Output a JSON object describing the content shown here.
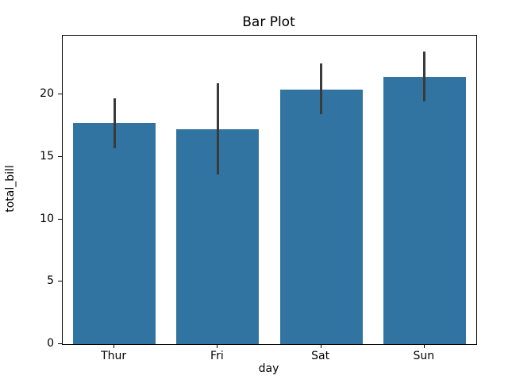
{
  "chart_data": {
    "type": "bar",
    "title": "Bar Plot",
    "xlabel": "day",
    "ylabel": "total_bill",
    "categories": [
      "Thur",
      "Fri",
      "Sat",
      "Sun"
    ],
    "values": [
      17.7,
      17.2,
      20.4,
      21.4
    ],
    "error_bars": {
      "low": [
        15.7,
        13.6,
        18.4,
        19.4
      ],
      "high": [
        19.7,
        20.9,
        22.5,
        23.4
      ]
    },
    "ylim": [
      0,
      24.7
    ],
    "yticks": [
      0,
      5,
      10,
      15,
      20
    ],
    "bar_color": "#3274a1",
    "error_color": "#3a3a3a",
    "bar_width_fraction": 0.8,
    "grid": "off",
    "legend": "none"
  }
}
